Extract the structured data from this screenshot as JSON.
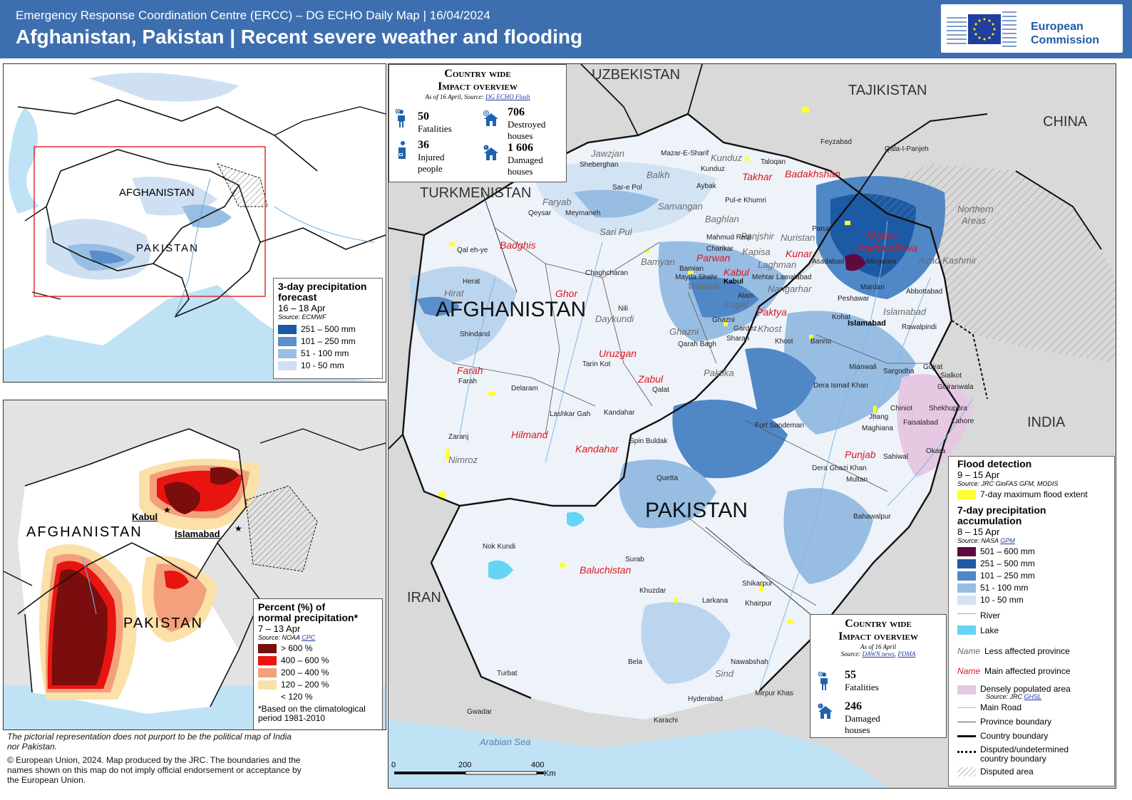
{
  "header": {
    "subtitle": "Emergency Response Coordination Centre (ERCC) – DG ECHO Daily Map | 16/04/2024",
    "title": "Afghanistan, Pakistan | Recent severe weather and flooding",
    "logo_line1": "European",
    "logo_line2": "Commission"
  },
  "colors": {
    "header_bg": "#3d6fb0",
    "main_province": "#e0161e",
    "flood": "#ffff33"
  },
  "inset_forecast": {
    "labels": {
      "afghanistan": "AFGHANISTAN",
      "pakistan": "PAKISTAN"
    },
    "legend": {
      "title1": "3-day precipitation",
      "title2": "forecast",
      "period": "16 – 18 Apr",
      "source": "Source: ECMWF",
      "items": [
        {
          "label": "251 – 500 mm",
          "color": "#1d5aa5"
        },
        {
          "label": "101 – 250 mm",
          "color": "#5a8fcb"
        },
        {
          "label": "51 - 100 mm",
          "color": "#98bfe3"
        },
        {
          "label": "10 - 50 mm",
          "color": "#cfe0f2"
        }
      ]
    }
  },
  "inset_normal": {
    "labels": {
      "kabul": "Kabul",
      "islamabad": "Islamabad",
      "afghanistan": "AFGHANISTAN",
      "pakistan": "PAKISTAN"
    },
    "legend": {
      "title1": "Percent (%) of",
      "title2": "normal precipitation*",
      "period": "7 – 13 Apr",
      "source_prefix": "Source: NOAA",
      "source_link": "CPC",
      "items": [
        {
          "label": "> 600 %",
          "color": "#7a0d0d"
        },
        {
          "label": "400 – 600 %",
          "color": "#e8140f"
        },
        {
          "label": "200 – 400 %",
          "color": "#f4a07c"
        },
        {
          "label": "120 – 200 %",
          "color": "#fbe0a8"
        },
        {
          "label": "< 120 %",
          "color": "#ffffff"
        }
      ],
      "footnote1": "*Based on the climatological",
      "footnote2": "period 1981-2010"
    }
  },
  "notes": {
    "disclaimer1": "The pictorial representation does not purport to be the political map of India",
    "disclaimer2": "nor Pakistan.",
    "copyright1": "© European Union, 2024. Map produced by the JRC. The boundaries and the",
    "copyright2": "names shown on this map do not imply official endorsement or acceptance by",
    "copyright3": "the European Union."
  },
  "impact_afghanistan": {
    "title1": "Country wide",
    "title2": "Impact overview",
    "source_prefix": "As of 16 April, Source:",
    "source_link": "DG ECHO Flash",
    "fatalities_value": "50",
    "fatalities_label": "Fatalities",
    "injured_value": "36",
    "injured_label1": "Injured",
    "injured_label2": "people",
    "destroyed_value": "706",
    "destroyed_label1": "Destroyed",
    "destroyed_label2": "houses",
    "damaged_value": "1 606",
    "damaged_label1": "Damaged",
    "damaged_label2": "houses"
  },
  "impact_pakistan": {
    "title1": "Country wide",
    "title2": "Impact overview",
    "as_of": "As of 16 April",
    "source_prefix": "Source:",
    "source_link1": "DAWN news",
    "source_link2": "PDMA",
    "fatalities_value": "55",
    "fatalities_label": "Fatalities",
    "damaged_value": "246",
    "damaged_label1": "Damaged",
    "damaged_label2": "houses"
  },
  "main_map": {
    "countries": {
      "uzbekistan": "UZBEKISTAN",
      "tajikistan": "TAJIKISTAN",
      "china": "CHINA",
      "turkmenistan": "TURKMENISTAN",
      "afghanistan": "AFGHANISTAN",
      "pakistan": "PAKISTAN",
      "iran": "IRAN",
      "india": "INDIA"
    },
    "sea": "Arabian Sea",
    "northern_areas1": "Northern",
    "northern_areas2": "Areas",
    "main_provinces": [
      "Takhar",
      "Badakhshan",
      "Badghis",
      "Khyber",
      "Pakhtunkhwa",
      "Parwan",
      "Kabul",
      "Kunar",
      "Ghor",
      "Paktya",
      "Farah",
      "Uruzgan",
      "Zabul",
      "Hilmand",
      "Kandahar",
      "Punjab",
      "Baluchistan"
    ],
    "less_provinces": [
      "Jawzjan",
      "Balkh",
      "Kunduz",
      "Faryab",
      "Samangan",
      "Baghlan",
      "Sari Pul",
      "Panjshir",
      "Nuristan",
      "Bamyan",
      "Kapisa",
      "Laghman",
      "Wardak",
      "Nangarhar",
      "Hirat",
      "Logar",
      "Daykundi",
      "Ghazni",
      "Khost",
      "Paktika",
      "Nimroz",
      "Azad Kashmir",
      "Islamabad",
      "Sind"
    ],
    "cities": [
      "Sheberghan",
      "Mazar-E-Sharif",
      "Kunduz",
      "Taloqan",
      "Feyzabad",
      "Qala-I-Panjeh",
      "Sar-e Pol",
      "Aybak",
      "Pul-e Khumri",
      "Qeysar",
      "Meymaneh",
      "Mahmud Raqi",
      "Parun",
      "Qal eh-ye",
      "Charikar",
      "Asadabad",
      "Mingaora",
      "Bamian",
      "Mayda Shahr",
      "Mehtar Lamalabad",
      "Herat",
      "Chaghcharan",
      "Alam",
      "Mardan",
      "Abbottabad",
      "Peshawar",
      "Nili",
      "Islamabad",
      "Rawalpindi",
      "Ghazni",
      "Gardez",
      "Kohat",
      "Shindand",
      "Qarah Bagh",
      "Sharan",
      "Khost",
      "Bannu",
      "Tarin Kot",
      "Mianwali",
      "Gujrat",
      "Sialkot",
      "Farah",
      "Delaram",
      "Qalat",
      "Dera Ismail Khan",
      "Sargodha",
      "Gujranwala",
      "Lashkar Gah",
      "Kandahar",
      "Chiniot",
      "Shekhupura",
      "Jhang",
      "Maghiana",
      "Faisalabad",
      "Lahore",
      "Zaranj",
      "Fort Sandeman",
      "Spin Buldak",
      "Sahiwal",
      "Okara",
      "Quetta",
      "Dera Ghazi Khan",
      "Multan",
      "Bahawalpur",
      "Nok Kundi",
      "Surab",
      "Khuzdar",
      "Shikarpur",
      "Larkana",
      "Khairpur",
      "Turbat",
      "Bela",
      "Nawabshah",
      "Mirpur Khas",
      "Hyderabad",
      "Gwadar",
      "Karachi",
      "Kabul"
    ],
    "scale": {
      "zero": "0",
      "mid": "200",
      "max": "400",
      "unit": "Km"
    }
  },
  "main_legend": {
    "flood_title": "Flood detection",
    "flood_period": "9 – 15 Apr",
    "flood_source": "Source: JRC GloFAS GFM, MODIS",
    "flood_item": "7-day maximum flood extent",
    "precip_title1": "7-day precipitation",
    "precip_title2": "accumulation",
    "precip_period": "8 – 15 Apr",
    "precip_source_prefix": "Source: NASA",
    "precip_source_link": "GPM",
    "precip_items": [
      {
        "label": "501 – 600 mm",
        "color": "#5e0a3f"
      },
      {
        "label": "251 – 500 mm",
        "color": "#1d5aa5"
      },
      {
        "label": "101 – 250 mm",
        "color": "#4f87c7"
      },
      {
        "label": "51 - 100 mm",
        "color": "#97bde3"
      },
      {
        "label": "10 - 50 mm",
        "color": "#d2e3f4"
      }
    ],
    "river": "River",
    "lake": "Lake",
    "less_prefix": "Name",
    "less_label": "Less affected province",
    "main_prefix": "Name",
    "main_label": "Main affected province",
    "dense_label": "Densely populated area",
    "dense_source_prefix": "Source: JRC",
    "dense_source_link": "GHSL",
    "main_road": "Main Road",
    "province_boundary": "Province boundary",
    "country_boundary": "Country boundary",
    "disputed1": "Disputed/undetermined",
    "disputed2": "country boundary",
    "disputed_area": "Disputed area"
  }
}
